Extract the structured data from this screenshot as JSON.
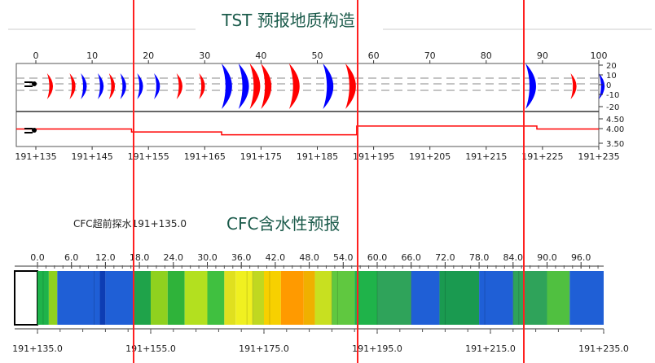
{
  "chart_data": [
    {
      "type": "tst-migration",
      "title": "TST 预报地质构造",
      "top_axis": {
        "ticks": [
          0,
          10,
          20,
          30,
          40,
          50,
          60,
          70,
          80,
          90,
          100
        ]
      },
      "right_axis_upper": {
        "ticks": [
          "20",
          "10",
          "0",
          "-10",
          "-20"
        ]
      },
      "right_axis_lower": {
        "ticks": [
          "4.50",
          "4.00",
          "3.50"
        ]
      },
      "bottom_axis": {
        "ticks": [
          "191+135",
          "191+145",
          "191+155",
          "191+165",
          "191+175",
          "191+185",
          "191+195",
          "191+205",
          "191+215",
          "191+225",
          "191+235"
        ]
      },
      "reflectors": [
        {
          "x": 2,
          "color": "#ff0000"
        },
        {
          "x": 6,
          "color": "#ff0000"
        },
        {
          "x": 8,
          "color": "#0000ff"
        },
        {
          "x": 11,
          "color": "#0000ff"
        },
        {
          "x": 13,
          "color": "#ff0000"
        },
        {
          "x": 15,
          "color": "#0000ff"
        },
        {
          "x": 18,
          "color": "#0000ff"
        },
        {
          "x": 21,
          "color": "#0000ff"
        },
        {
          "x": 25,
          "color": "#ff0000"
        },
        {
          "x": 29,
          "color": "#ff0000"
        },
        {
          "x": 33,
          "color": "#0000ff"
        },
        {
          "x": 36,
          "color": "#0000ff"
        },
        {
          "x": 38,
          "color": "#ff0000"
        },
        {
          "x": 40,
          "color": "#ff0000"
        },
        {
          "x": 45,
          "color": "#ff0000"
        },
        {
          "x": 51,
          "color": "#0000ff"
        },
        {
          "x": 55,
          "color": "#ff0000"
        },
        {
          "x": 87,
          "color": "#0000ff"
        },
        {
          "x": 95,
          "color": "#ff0000"
        },
        {
          "x": 100,
          "color": "#0000ff"
        }
      ],
      "velocity_profile": [
        {
          "from": 0,
          "to": 17,
          "v": 4.0
        },
        {
          "from": 17,
          "to": 33,
          "v": 3.9
        },
        {
          "from": 33,
          "to": 57,
          "v": 3.8
        },
        {
          "from": 57,
          "to": 89,
          "v": 4.1
        },
        {
          "from": 89,
          "to": 100,
          "v": 4.0
        }
      ],
      "velocity_range": [
        3.4,
        4.6
      ]
    },
    {
      "type": "heatmap",
      "title": "CFC含水性预报",
      "label": "CFC超前探水191+135.0",
      "top_axis": {
        "ticks": [
          "0.0",
          "6.0",
          "12.0",
          "18.0",
          "24.0",
          "30.0",
          "36.0",
          "42.0",
          "48.0",
          "54.0",
          "60.0",
          "66.0",
          "72.0",
          "78.0",
          "84.0",
          "90.0",
          "96.0"
        ]
      },
      "bottom_axis": {
        "ticks": [
          "191+135.0",
          "191+155.0",
          "191+175.0",
          "191+195.0",
          "191+215.0",
          "191+235.0"
        ]
      },
      "x_range": [
        0,
        100
      ],
      "bands": [
        {
          "from": 0,
          "to": 2,
          "color": "#1fb34a"
        },
        {
          "from": 2,
          "to": 3.5,
          "color": "#8fd11f"
        },
        {
          "from": 3.5,
          "to": 11,
          "color": "#1f5fd6"
        },
        {
          "from": 11,
          "to": 12,
          "color": "#0d3db3"
        },
        {
          "from": 12,
          "to": 17,
          "color": "#1f5fd6"
        },
        {
          "from": 17,
          "to": 20,
          "color": "#1fa34a"
        },
        {
          "from": 20,
          "to": 23,
          "color": "#8fd11f"
        },
        {
          "from": 23,
          "to": 26,
          "color": "#2fb33a"
        },
        {
          "from": 26,
          "to": 30,
          "color": "#b3e01f"
        },
        {
          "from": 30,
          "to": 33,
          "color": "#40c040"
        },
        {
          "from": 33,
          "to": 35,
          "color": "#e0e01f"
        },
        {
          "from": 35,
          "to": 38,
          "color": "#f0f020"
        },
        {
          "from": 38,
          "to": 40,
          "color": "#c0d820"
        },
        {
          "from": 40,
          "to": 43,
          "color": "#f7d000"
        },
        {
          "from": 43,
          "to": 47,
          "color": "#ff9a00"
        },
        {
          "from": 47,
          "to": 49,
          "color": "#f0b000"
        },
        {
          "from": 49,
          "to": 52,
          "color": "#c8e020"
        },
        {
          "from": 52,
          "to": 56,
          "color": "#60c840"
        },
        {
          "from": 56,
          "to": 60,
          "color": "#1fb34a"
        },
        {
          "from": 60,
          "to": 66,
          "color": "#2fa35a"
        },
        {
          "from": 66,
          "to": 71,
          "color": "#1f5fd6"
        },
        {
          "from": 71,
          "to": 78,
          "color": "#1a9a50"
        },
        {
          "from": 78,
          "to": 84,
          "color": "#1f5fd6"
        },
        {
          "from": 84,
          "to": 90,
          "color": "#2fa35a"
        },
        {
          "from": 90,
          "to": 94,
          "color": "#50c040"
        },
        {
          "from": 94,
          "to": 100,
          "color": "#1f5fd6"
        }
      ]
    }
  ],
  "markers": [
    17,
    57,
    89
  ]
}
